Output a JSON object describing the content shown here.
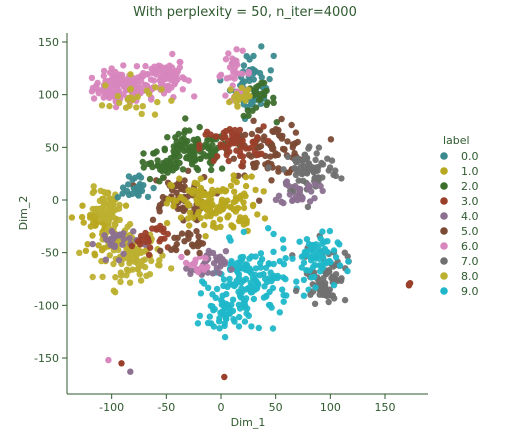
{
  "chart_data": {
    "type": "scatter",
    "title": "With perplexity = 50, n_iter=4000",
    "xlabel": "Dim_1",
    "ylabel": "Dim_2",
    "xlim": [
      -140,
      190
    ],
    "ylim": [
      -175,
      158
    ],
    "xticks": [
      -100,
      -50,
      0,
      50,
      100,
      150
    ],
    "yticks": [
      -150,
      -100,
      -50,
      0,
      50,
      100,
      150
    ],
    "grid": false,
    "legend": {
      "title": "label",
      "placement": "right",
      "entries": [
        "0.0",
        "1.0",
        "2.0",
        "3.0",
        "4.0",
        "5.0",
        "6.0",
        "7.0",
        "8.0",
        "9.0"
      ]
    },
    "colors": [
      "#3a8a8f",
      "#b8a81f",
      "#3c6e2c",
      "#9a3f2a",
      "#8b7090",
      "#7a4a34",
      "#d886be",
      "#707070",
      "#bdb030",
      "#1fb7c9"
    ],
    "clusters": [
      {
        "label": "6.0",
        "center": [
          -92,
          107
        ],
        "radius": [
          23,
          13
        ],
        "count": 110
      },
      {
        "label": "6.0",
        "center": [
          -53,
          117
        ],
        "radius": [
          19,
          17
        ],
        "count": 90
      },
      {
        "label": "8.0",
        "center": [
          -82,
          97
        ],
        "radius": [
          24,
          18
        ],
        "count": 25
      },
      {
        "label": "0.0",
        "center": [
          28,
          110
        ],
        "radius": [
          18,
          28
        ],
        "count": 55
      },
      {
        "label": "6.0",
        "center": [
          12,
          120
        ],
        "radius": [
          15,
          18
        ],
        "count": 30
      },
      {
        "label": "2.0",
        "center": [
          35,
          95
        ],
        "radius": [
          13,
          15
        ],
        "count": 25
      },
      {
        "label": "8.0",
        "center": [
          18,
          98
        ],
        "radius": [
          12,
          15
        ],
        "count": 18
      },
      {
        "label": "2.0",
        "center": [
          -25,
          45
        ],
        "radius": [
          32,
          18
        ],
        "count": 110
      },
      {
        "label": "5.0",
        "center": [
          45,
          48
        ],
        "radius": [
          32,
          22
        ],
        "count": 90
      },
      {
        "label": "3.0",
        "center": [
          10,
          52
        ],
        "radius": [
          26,
          16
        ],
        "count": 55
      },
      {
        "label": "7.0",
        "center": [
          82,
          28
        ],
        "radius": [
          24,
          22
        ],
        "count": 80
      },
      {
        "label": "4.0",
        "center": [
          72,
          8
        ],
        "radius": [
          16,
          12
        ],
        "count": 30
      },
      {
        "label": "5.0",
        "center": [
          -40,
          2
        ],
        "radius": [
          28,
          20
        ],
        "count": 65
      },
      {
        "label": "1.0",
        "center": [
          -5,
          -5
        ],
        "radius": [
          36,
          24
        ],
        "count": 140
      },
      {
        "label": "1.0",
        "center": [
          -110,
          -22
        ],
        "radius": [
          16,
          25
        ],
        "count": 60
      },
      {
        "label": "8.0",
        "center": [
          -105,
          -8
        ],
        "radius": [
          13,
          17
        ],
        "count": 55
      },
      {
        "label": "8.0",
        "center": [
          -80,
          -52
        ],
        "radius": [
          24,
          22
        ],
        "count": 100
      },
      {
        "label": "4.0",
        "center": [
          -95,
          -40
        ],
        "radius": [
          17,
          14
        ],
        "count": 30
      },
      {
        "label": "3.0",
        "center": [
          -65,
          -35
        ],
        "radius": [
          15,
          13
        ],
        "count": 25
      },
      {
        "label": "9.0",
        "center": [
          28,
          -78
        ],
        "radius": [
          32,
          32
        ],
        "count": 140
      },
      {
        "label": "9.0",
        "center": [
          3,
          -108
        ],
        "radius": [
          18,
          18
        ],
        "count": 50
      },
      {
        "label": "7.0",
        "center": [
          95,
          -70
        ],
        "radius": [
          18,
          25
        ],
        "count": 80
      },
      {
        "label": "9.0",
        "center": [
          85,
          -55
        ],
        "radius": [
          20,
          22
        ],
        "count": 65
      },
      {
        "label": "4.0",
        "center": [
          -12,
          -63
        ],
        "radius": [
          15,
          13
        ],
        "count": 35
      },
      {
        "label": "6.0",
        "center": [
          -22,
          -62
        ],
        "radius": [
          10,
          9
        ],
        "count": 14
      },
      {
        "label": "0.0",
        "center": [
          -80,
          12
        ],
        "radius": [
          16,
          12
        ],
        "count": 25
      },
      {
        "label": "2.0",
        "center": [
          -52,
          32
        ],
        "radius": [
          14,
          12
        ],
        "count": 25
      },
      {
        "label": "5.0",
        "center": [
          -30,
          -40
        ],
        "radius": [
          14,
          10
        ],
        "count": 25
      }
    ],
    "outliers": [
      {
        "label": "3.0",
        "x": 172,
        "y": -80
      },
      {
        "label": "3.0",
        "x": 172,
        "y": -81
      },
      {
        "label": "3.0",
        "x": 173,
        "y": -79
      },
      {
        "label": "6.0",
        "x": -103,
        "y": -152
      },
      {
        "label": "3.0",
        "x": -91,
        "y": -155
      },
      {
        "label": "4.0",
        "x": -83,
        "y": -163
      },
      {
        "label": "3.0",
        "x": 3,
        "y": -168
      }
    ]
  }
}
